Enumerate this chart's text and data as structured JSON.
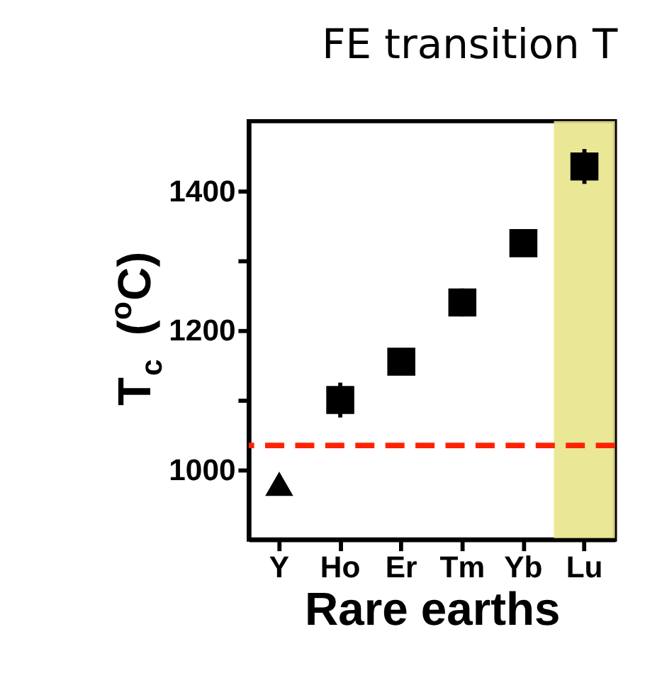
{
  "chart_data": {
    "type": "scatter",
    "title": "FE transition T",
    "xlabel": "Rare earths",
    "ylabel": "T$_{c}$ ($^{o}$C)",
    "categories": [
      "Y",
      "Ho",
      "Er",
      "Tm",
      "Yb",
      "Lu"
    ],
    "series": [
      {
        "marker": "triangle",
        "color": "#000000",
        "values": [
          980,
          null,
          null,
          null,
          null,
          null
        ]
      },
      {
        "marker": "square",
        "color": "#000000",
        "values": [
          null,
          1100,
          1155,
          1240,
          1325,
          1435
        ],
        "errors": [
          null,
          25,
          null,
          20,
          null,
          25
        ]
      }
    ],
    "ylim": [
      900,
      1500
    ],
    "yticks": [
      1000,
      {
        "value": 1100,
        "label": null
      },
      1200,
      {
        "value": 1300,
        "label": null
      },
      1400
    ],
    "ref_lines": [
      {
        "axis": "y",
        "value": 1035,
        "color": "#ff2200",
        "line_style": "dashed"
      }
    ],
    "bands": [
      {
        "axis": "x",
        "from": "Lu",
        "to": "Lu",
        "color": "#e8e68c"
      }
    ],
    "grid": false
  }
}
